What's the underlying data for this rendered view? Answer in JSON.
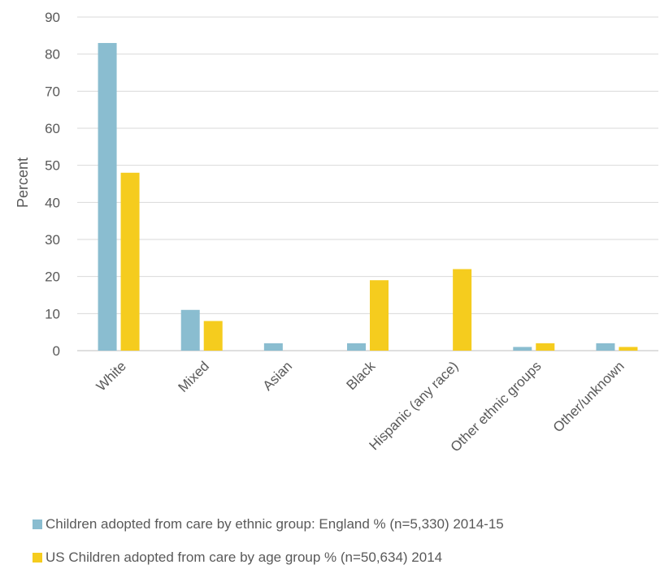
{
  "chart_data": {
    "type": "bar",
    "title": "",
    "xlabel": "",
    "ylabel": "Percent",
    "ylim": [
      0,
      90
    ],
    "yticks": [
      0,
      10,
      20,
      30,
      40,
      50,
      60,
      70,
      80,
      90
    ],
    "grid": true,
    "legend_position": "bottom",
    "categories": [
      "White",
      "Mixed",
      "Asian",
      "Black",
      "Hispanic (any race)",
      "Other ethnic groups",
      "Other/unknown"
    ],
    "series": [
      {
        "name": "Children adopted from care by ethnic group: England % (n=5,330) 2014-15",
        "color": "#8ABDD0",
        "values": [
          83,
          11,
          2,
          2,
          0,
          1,
          2
        ]
      },
      {
        "name": "US Children adopted from care by age group % (n=50,634) 2014",
        "color": "#F5CC1E",
        "values": [
          48,
          8,
          0,
          19,
          22,
          2,
          1
        ]
      }
    ]
  }
}
